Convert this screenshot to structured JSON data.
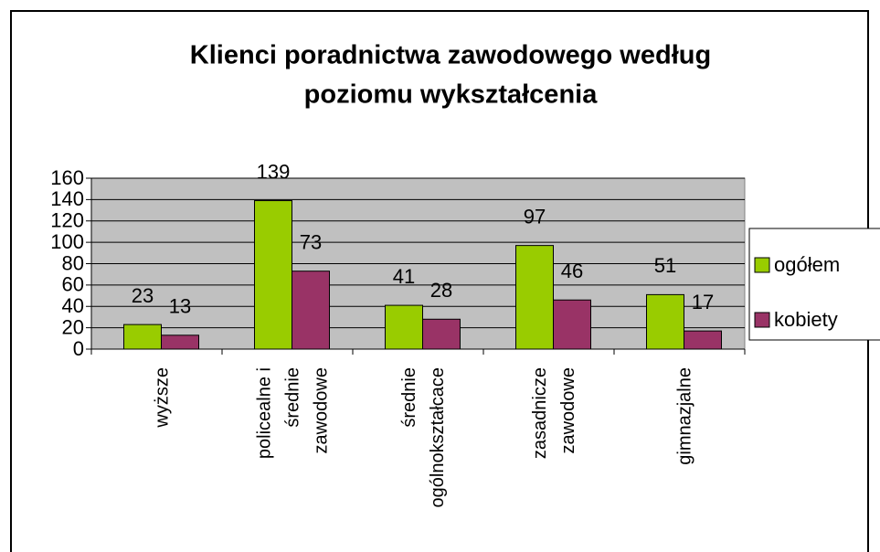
{
  "chart_data": {
    "type": "bar",
    "title": [
      "Klienci poradnictwa zawodowego według",
      "poziomu wykształcenia"
    ],
    "categories": [
      "wyższe",
      "policealne i\nśrednie\nzawodowe",
      "średnie\nogólnokształcace",
      "zasadnicze\nzawodowe",
      "gimnazjalne"
    ],
    "series": [
      {
        "name": "ogółem",
        "color": "#99cc00",
        "values": [
          23,
          139,
          41,
          97,
          51
        ]
      },
      {
        "name": "kobiety",
        "color": "#993366",
        "values": [
          13,
          73,
          28,
          46,
          17
        ]
      }
    ],
    "ylim": [
      0,
      160
    ],
    "yticks": [
      0,
      20,
      40,
      60,
      80,
      100,
      120,
      140,
      160
    ],
    "grid": true,
    "legend": "right",
    "plot_background": "#c0c0c0"
  }
}
